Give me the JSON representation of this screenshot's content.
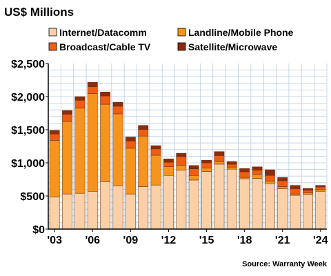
{
  "chart_data": {
    "type": "bar",
    "stacked": true,
    "title": "US$ Millions",
    "source": "Source: Warranty Week",
    "legend_placement": "top",
    "grid": true,
    "ylim": [
      0,
      2500
    ],
    "y_ticks": [
      {
        "value": 0,
        "label": "$0"
      },
      {
        "value": 500,
        "label": "$500"
      },
      {
        "value": 1000,
        "label": "$1,000"
      },
      {
        "value": 1500,
        "label": "$1,500"
      },
      {
        "value": 2000,
        "label": "$2,000"
      },
      {
        "value": 2500,
        "label": "$2,500"
      }
    ],
    "categories": [
      "2003",
      "2004",
      "2005",
      "2006",
      "2007",
      "2008",
      "2009",
      "2010",
      "2011",
      "2012",
      "2013",
      "2014",
      "2015",
      "2016",
      "2017",
      "2018",
      "2019",
      "2020",
      "2021",
      "2022",
      "2023",
      "2024"
    ],
    "x_tick_labels": [
      {
        "category": "2003",
        "label": "'03"
      },
      {
        "category": "2006",
        "label": "'06"
      },
      {
        "category": "2009",
        "label": "'09"
      },
      {
        "category": "2012",
        "label": "'12"
      },
      {
        "category": "2015",
        "label": "'15"
      },
      {
        "category": "2018",
        "label": "'18"
      },
      {
        "category": "2021",
        "label": "'21"
      },
      {
        "category": "2024",
        "label": "'24"
      }
    ],
    "series": [
      {
        "name": "Internet/Datacomm",
        "color": "#fbd0a7",
        "values": [
          485,
          530,
          540,
          570,
          715,
          655,
          530,
          640,
          665,
          810,
          890,
          740,
          870,
          980,
          905,
          760,
          765,
          685,
          610,
          510,
          525,
          570
        ]
      },
      {
        "name": "Landline/Mobile Phone",
        "color": "#f7941d",
        "values": [
          855,
          1095,
          1285,
          1475,
          1170,
          1085,
          690,
          765,
          450,
          130,
          75,
          70,
          50,
          40,
          30,
          20,
          60,
          40,
          30,
          20,
          20,
          25
        ]
      },
      {
        "name": "Broadcast/Cable TV",
        "color": "#ef5d12",
        "values": [
          95,
          110,
          120,
          105,
          125,
          115,
          110,
          100,
          95,
          70,
          130,
          100,
          80,
          90,
          45,
          85,
          65,
          85,
          90,
          80,
          40,
          40
        ]
      },
      {
        "name": "Satellite/Microwave",
        "color": "#8b2c0e",
        "values": [
          55,
          55,
          55,
          65,
          60,
          60,
          60,
          60,
          50,
          50,
          50,
          50,
          40,
          60,
          40,
          50,
          50,
          85,
          50,
          50,
          30,
          25
        ]
      }
    ]
  }
}
